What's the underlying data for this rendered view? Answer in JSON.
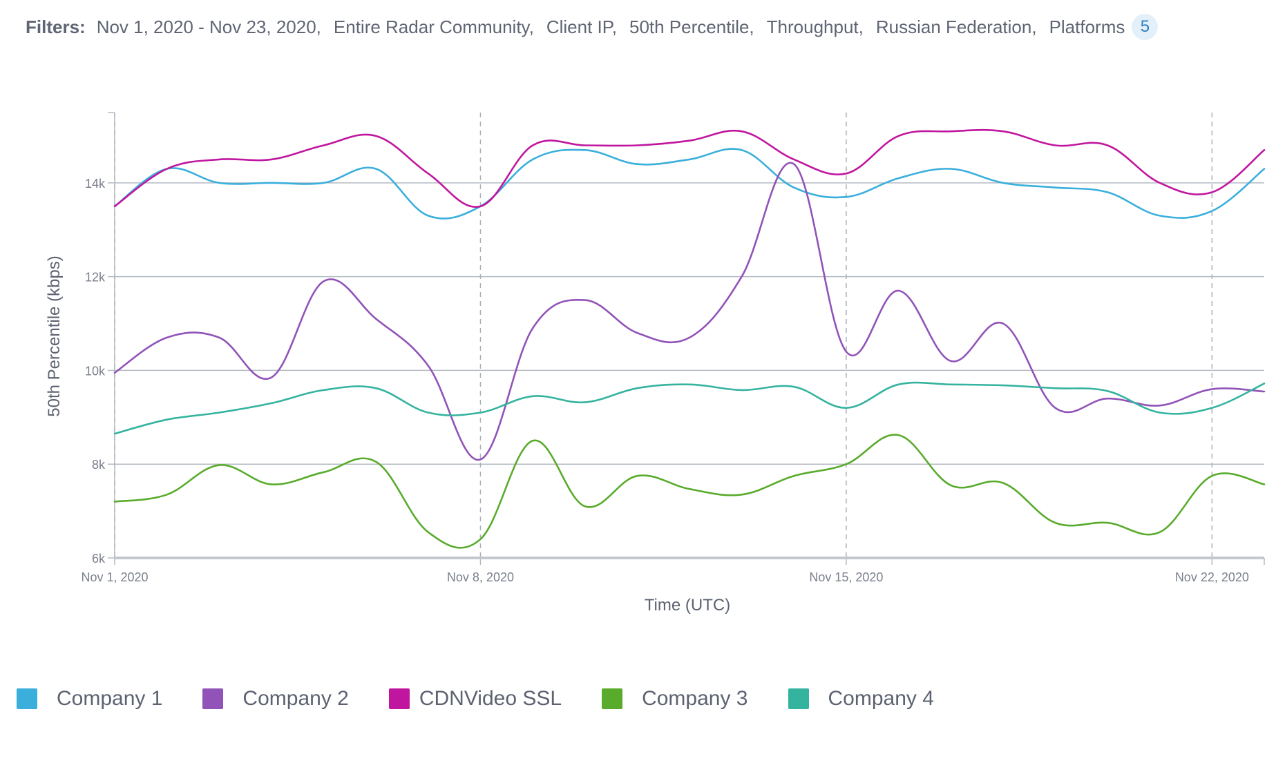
{
  "filters": {
    "label": "Filters:",
    "items": [
      "Nov 1, 2020 - Nov 23, 2020,",
      "Entire Radar Community,",
      "Client IP,",
      "50th Percentile,",
      "Throughput,",
      "Russian Federation,",
      "Platforms"
    ],
    "count": "5"
  },
  "chart_data": {
    "type": "line",
    "xlabel": "Time (UTC)",
    "ylabel": "50th Percentile (kbps)",
    "xlim": [
      "2020-11-01",
      "2020-11-23"
    ],
    "ylim": [
      6000,
      15500
    ],
    "x_ticks": [
      {
        "date": "2020-11-01",
        "label": "Nov 1, 2020"
      },
      {
        "date": "2020-11-08",
        "label": "Nov 8, 2020"
      },
      {
        "date": "2020-11-15",
        "label": "Nov 15, 2020"
      },
      {
        "date": "2020-11-22",
        "label": "Nov 22, 2020"
      }
    ],
    "y_ticks": [
      {
        "value": 6000,
        "label": "6k"
      },
      {
        "value": 8000,
        "label": "8k"
      },
      {
        "value": 10000,
        "label": "10k"
      },
      {
        "value": 12000,
        "label": "12k"
      },
      {
        "value": 14000,
        "label": "14k"
      }
    ],
    "x": [
      "2020-11-01",
      "2020-11-02",
      "2020-11-03",
      "2020-11-04",
      "2020-11-05",
      "2020-11-06",
      "2020-11-07",
      "2020-11-08",
      "2020-11-09",
      "2020-11-10",
      "2020-11-11",
      "2020-11-12",
      "2020-11-13",
      "2020-11-14",
      "2020-11-15",
      "2020-11-16",
      "2020-11-17",
      "2020-11-18",
      "2020-11-19",
      "2020-11-20",
      "2020-11-21",
      "2020-11-22",
      "2020-11-23"
    ],
    "grid": "horizontal solid at y ticks, vertical dashed at week ticks",
    "legend_position": "bottom-left",
    "series": [
      {
        "name": "Company 1",
        "color": "#3aafdc",
        "values": [
          13500,
          14300,
          14000,
          14000,
          14000,
          14300,
          13300,
          13500,
          14500,
          14700,
          14400,
          14500,
          14700,
          13900,
          13700,
          14100,
          14300,
          14000,
          13900,
          13800,
          13300,
          13400,
          14300
        ]
      },
      {
        "name": "Company 2",
        "color": "#9153b8",
        "values": [
          9950,
          10700,
          10700,
          9850,
          11900,
          11100,
          10100,
          8100,
          10900,
          11500,
          10800,
          10700,
          12000,
          14400,
          10400,
          11700,
          10200,
          11000,
          9200,
          9400,
          9250,
          9600,
          9550
        ]
      },
      {
        "name": "CDNVideo SSL",
        "color": "#c0169f",
        "values": [
          13500,
          14300,
          14500,
          14500,
          14800,
          15000,
          14200,
          13500,
          14800,
          14800,
          14800,
          14900,
          15100,
          14500,
          14200,
          15000,
          15100,
          15100,
          14800,
          14800,
          14000,
          13800,
          14700
        ]
      },
      {
        "name": "Company 3",
        "color": "#59ab2c",
        "values": [
          7200,
          7350,
          7980,
          7570,
          7830,
          8050,
          6550,
          6400,
          8500,
          7100,
          7750,
          7470,
          7350,
          7750,
          8000,
          8620,
          7550,
          7600,
          6750,
          6750,
          6550,
          7750,
          7570
        ]
      },
      {
        "name": "Company 4",
        "color": "#34b39f",
        "values": [
          8650,
          8950,
          9100,
          9300,
          9580,
          9620,
          9100,
          9100,
          9450,
          9320,
          9620,
          9700,
          9580,
          9650,
          9200,
          9700,
          9700,
          9680,
          9620,
          9560,
          9100,
          9200,
          9720
        ]
      }
    ]
  }
}
